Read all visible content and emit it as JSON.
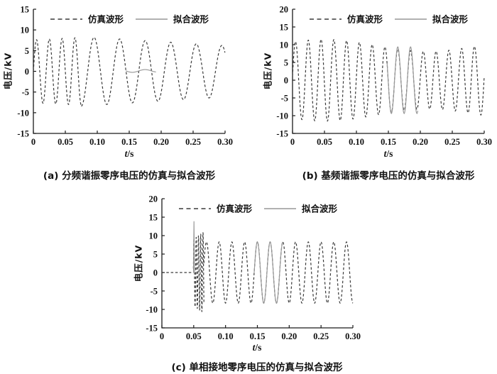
{
  "page": {
    "background": "#ffffff"
  },
  "colors": {
    "axis": "#1a1a1a",
    "simulated_line": "#3a3a3a",
    "fitted_line": "#979797",
    "text": "#111111"
  },
  "chart_data": [
    {
      "id": "a",
      "type": "line",
      "caption": "(a) 分频谐振零序电压的仿真与拟合波形",
      "xlabel": "t/s",
      "xlabel_var": "t",
      "xlabel_unit": "/s",
      "ylabel": "电压/kV",
      "xlim": [
        0,
        0.3
      ],
      "ylim": [
        -15,
        15
      ],
      "x_ticks": [
        "0",
        "0.05",
        "0.10",
        "0.15",
        "0.20",
        "0.25",
        "0.30"
      ],
      "x_tick_values": [
        0,
        0.05,
        0.1,
        0.15,
        0.2,
        0.25,
        0.3
      ],
      "y_ticks": [
        "-15",
        "-10",
        "-5",
        "0",
        "5",
        "10",
        "15"
      ],
      "y_tick_values": [
        -15,
        -10,
        -5,
        0,
        5,
        10,
        15
      ],
      "grid": false,
      "legend_position": "top-inside",
      "legend": [
        {
          "label": "仿真波形",
          "style": "dashed",
          "color": "#3a3a3a"
        },
        {
          "label": "拟合波形",
          "style": "solid",
          "color": "#979797"
        }
      ],
      "series": [
        {
          "name": "仿真波形",
          "style": "dashed",
          "color": "#3a3a3a",
          "description": "simulated zero-sequence voltage: 50 Hz burst (~8 kV) for 0-0.075 s decaying into 25 Hz subharmonic resonance, amplitude 8.4->6.2 kV",
          "segments": [
            {
              "type": "sine",
              "t0": 0,
              "t1": 0.075,
              "freq": 50,
              "amp0": 7.6,
              "amp1": 8.2,
              "phase": 0
            },
            {
              "type": "sine",
              "t0": 0.075,
              "t1": 0.3,
              "freq": 25,
              "amp0": 8.4,
              "amp1": 6.2,
              "phase": -0.785
            }
          ]
        },
        {
          "name": "拟合波形",
          "style": "solid",
          "color": "#979797",
          "description": "fitted waveform: nearly flat ripple around 0 kV between 0.145 s and 0.192 s",
          "segments": [
            {
              "type": "sine",
              "t0": 0.145,
              "t1": 0.192,
              "freq": 25,
              "amp0": 0.35,
              "amp1": 0.3,
              "phase": -0.785,
              "offset": 0.1
            }
          ]
        }
      ]
    },
    {
      "id": "b",
      "type": "line",
      "caption": "(b) 基频谐振零序电压的仿真与拟合波形",
      "xlabel": "t/s",
      "xlabel_var": "t",
      "xlabel_unit": "/s",
      "ylabel": "电压/kV",
      "xlim": [
        0,
        0.3
      ],
      "ylim": [
        -15,
        20
      ],
      "x_ticks": [
        "0",
        "0.05",
        "0.10",
        "0.15",
        "0.20",
        "0.25",
        "0.30"
      ],
      "x_tick_values": [
        0,
        0.05,
        0.1,
        0.15,
        0.2,
        0.25,
        0.3
      ],
      "y_ticks": [
        "-15",
        "-10",
        "-5",
        "0",
        "5",
        "10",
        "15",
        "20"
      ],
      "y_tick_values": [
        -15,
        -10,
        -5,
        0,
        5,
        10,
        15,
        20
      ],
      "grid": false,
      "legend_position": "top-inside",
      "legend": [
        {
          "label": "仿真波形",
          "style": "dashed",
          "color": "#3a3a3a"
        },
        {
          "label": "拟合波形",
          "style": "solid",
          "color": "#979797"
        }
      ],
      "series": [
        {
          "name": "仿真波形",
          "style": "dashed",
          "color": "#3a3a3a",
          "description": "simulated zero-sequence voltage: continuous 50 Hz fundamental resonance, amplitude ~10 kV with slow beat (peaks 8.5-13 kV)",
          "segments": [
            {
              "type": "sine",
              "t0": 0,
              "t1": 0.3,
              "freq": 50,
              "amp0": 10,
              "amp1": 9.6,
              "phase": 0.1,
              "amp_mod": {
                "freq": 3.2,
                "depth": 1.6,
                "phase": 0.5
              }
            }
          ]
        },
        {
          "name": "拟合波形",
          "style": "solid",
          "color": "#979797",
          "description": "fitted waveform: 50 Hz, ~9.4 kV amplitude, overlapping the simulation from 0.148 s to 0.196 s",
          "segments": [
            {
              "type": "sine",
              "t0": 0.148,
              "t1": 0.196,
              "freq": 50,
              "amp0": 9.4,
              "amp1": 9.4,
              "phase": 0.1
            }
          ]
        }
      ]
    },
    {
      "id": "c",
      "type": "line",
      "caption": "(c) 单相接地零序电压的仿真与拟合波形",
      "xlabel": "t/s",
      "xlabel_var": "t",
      "xlabel_unit": "/s",
      "ylabel": "电压/kV",
      "xlim": [
        0,
        0.3
      ],
      "ylim": [
        -15,
        20
      ],
      "x_ticks": [
        "0",
        "0.05",
        "0.10",
        "0.15",
        "0.20",
        "0.25",
        "0.30"
      ],
      "x_tick_values": [
        0,
        0.05,
        0.1,
        0.15,
        0.2,
        0.25,
        0.3
      ],
      "y_ticks": [
        "-15",
        "-10",
        "-5",
        "0",
        "5",
        "10",
        "15",
        "20"
      ],
      "y_tick_values": [
        -15,
        -10,
        -5,
        0,
        5,
        10,
        15,
        20
      ],
      "grid": false,
      "legend_position": "top-inside",
      "legend": [
        {
          "label": "仿真波形",
          "style": "dashed",
          "color": "#3a3a3a"
        },
        {
          "label": "拟合波形",
          "style": "solid",
          "color": "#979797"
        }
      ],
      "series": [
        {
          "name": "仿真波形",
          "style": "dashed",
          "color": "#3a3a3a",
          "description": "simulated zero-sequence voltage: 0 kV until fault at 0.05 s, high-frequency transient (to about -11 kV) until ~0.066 s, then steady 50 Hz ~8.3 kV",
          "segments": [
            {
              "type": "const",
              "t0": 0,
              "t1": 0.0495,
              "value": 0
            },
            {
              "type": "sine",
              "t0": 0.0495,
              "t1": 0.066,
              "freq": 280,
              "amp0": 9,
              "amp1": 11,
              "phase": 1.0
            },
            {
              "type": "sine",
              "t0": 0.066,
              "t1": 0.3,
              "freq": 50,
              "amp0": 8.3,
              "amp1": 8.3,
              "phase": -1.5708
            }
          ]
        },
        {
          "name": "拟合波形",
          "style": "solid",
          "color": "#979797",
          "description": "fitted waveform: narrow spike to ~13.8 kV at 0.05 s and 50 Hz ~8.3 kV section overlapping simulation from 0.145 s to 0.19 s",
          "segments": [
            {
              "type": "spike",
              "t0": 0.0496,
              "t1": 0.0512,
              "peak": 13.8
            },
            {
              "type": "sine",
              "t0": 0.145,
              "t1": 0.19,
              "freq": 50,
              "amp0": 8.3,
              "amp1": 8.3,
              "phase": -1.5708
            }
          ]
        }
      ]
    }
  ]
}
